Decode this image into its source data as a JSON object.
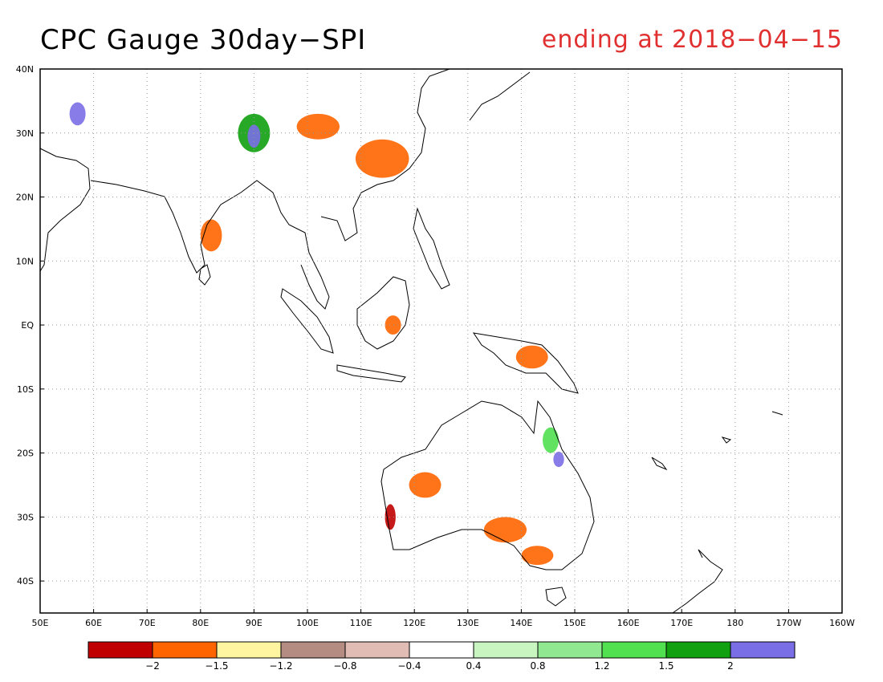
{
  "header": {
    "title": "CPC Gauge 30day−SPI",
    "subtitle": "ending at 2018−04−15"
  },
  "map": {
    "lon_range": [
      50,
      200
    ],
    "lat_range": [
      -45,
      40
    ],
    "lon_ticks": [
      {
        "value": 50,
        "label": "50E"
      },
      {
        "value": 60,
        "label": "60E"
      },
      {
        "value": 70,
        "label": "70E"
      },
      {
        "value": 80,
        "label": "80E"
      },
      {
        "value": 90,
        "label": "90E"
      },
      {
        "value": 100,
        "label": "100E"
      },
      {
        "value": 110,
        "label": "110E"
      },
      {
        "value": 120,
        "label": "120E"
      },
      {
        "value": 130,
        "label": "130E"
      },
      {
        "value": 140,
        "label": "140E"
      },
      {
        "value": 150,
        "label": "150E"
      },
      {
        "value": 160,
        "label": "160E"
      },
      {
        "value": 170,
        "label": "170E"
      },
      {
        "value": 180,
        "label": "180"
      },
      {
        "value": 190,
        "label": "170W"
      },
      {
        "value": 200,
        "label": "160W"
      }
    ],
    "lat_ticks": [
      {
        "value": 40,
        "label": "40N"
      },
      {
        "value": 30,
        "label": "30N"
      },
      {
        "value": 20,
        "label": "20N"
      },
      {
        "value": 10,
        "label": "10N"
      },
      {
        "value": 0,
        "label": "EQ"
      },
      {
        "value": -10,
        "label": "10S"
      },
      {
        "value": -20,
        "label": "20S"
      },
      {
        "value": -30,
        "label": "30S"
      },
      {
        "value": -40,
        "label": "40S"
      }
    ],
    "grid": true
  },
  "colorbar": {
    "colors": [
      "#c00000",
      "#ff6400",
      "#fff5a0",
      "#b48c82",
      "#e0bcb4",
      "#ffffff",
      "#c8f5c0",
      "#90e890",
      "#50e050",
      "#10a010",
      "#7a6ee6"
    ],
    "labels": [
      "−2",
      "−1.5",
      "−1.2",
      "−0.8",
      "−0.4",
      "0.4",
      "0.8",
      "1.2",
      "1.5",
      "2"
    ]
  },
  "regions": [
    {
      "name": "india-west-dry",
      "lon": 82,
      "lat": 14,
      "rx": 2,
      "ry": 2.5,
      "c": "#ff6400"
    },
    {
      "name": "south-china-dry",
      "lon": 114,
      "lat": 26,
      "rx": 5,
      "ry": 3,
      "c": "#ff6400"
    },
    {
      "name": "tibet-dry",
      "lon": 102,
      "lat": 31,
      "rx": 4,
      "ry": 2,
      "c": "#ff6400"
    },
    {
      "name": "tibet-wet",
      "lon": 90,
      "lat": 30,
      "rx": 3,
      "ry": 3,
      "c": "#10a010"
    },
    {
      "name": "himalaya-very-wet",
      "lon": 90,
      "lat": 29.5,
      "rx": 1.2,
      "ry": 1.8,
      "c": "#7a6ee6"
    },
    {
      "name": "iran-very-wet",
      "lon": 57,
      "lat": 33,
      "rx": 1.5,
      "ry": 1.8,
      "c": "#7a6ee6"
    },
    {
      "name": "borneo-dry",
      "lon": 116,
      "lat": 0,
      "rx": 1.5,
      "ry": 1.5,
      "c": "#ff6400"
    },
    {
      "name": "new-guinea-dry",
      "lon": 142,
      "lat": -5,
      "rx": 3,
      "ry": 1.8,
      "c": "#ff6400"
    },
    {
      "name": "wa-dry",
      "lon": 122,
      "lat": -25,
      "rx": 3,
      "ry": 2,
      "c": "#ff6400"
    },
    {
      "name": "sa-dry",
      "lon": 137,
      "lat": -32,
      "rx": 4,
      "ry": 2,
      "c": "#ff6400"
    },
    {
      "name": "victoria-dry",
      "lon": 143,
      "lat": -36,
      "rx": 3,
      "ry": 1.5,
      "c": "#ff6400"
    },
    {
      "name": "wa-coast-very-dry",
      "lon": 115.5,
      "lat": -30,
      "rx": 1,
      "ry": 2,
      "c": "#c00000"
    },
    {
      "name": "queensland-very-wet",
      "lon": 147,
      "lat": -21,
      "rx": 1,
      "ry": 1.2,
      "c": "#7a6ee6"
    },
    {
      "name": "queensland-wet",
      "lon": 145.5,
      "lat": -18,
      "rx": 1.5,
      "ry": 2,
      "c": "#50e050"
    }
  ]
}
